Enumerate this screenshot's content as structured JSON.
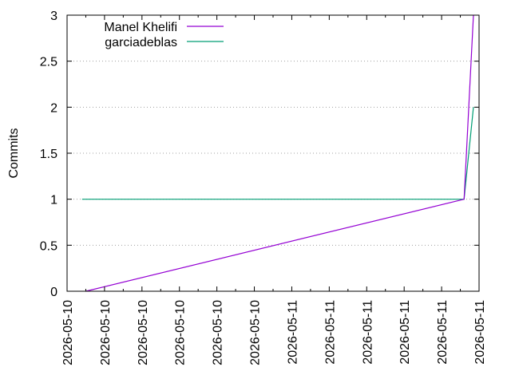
{
  "chart_data": {
    "type": "line",
    "title": "",
    "xlabel": "",
    "ylabel": "Commits",
    "ylim": [
      0,
      3
    ],
    "yticks": [
      0,
      0.5,
      1,
      1.5,
      2,
      2.5,
      3
    ],
    "ytick_labels": [
      "0",
      "0.5",
      "1",
      "1.5",
      "2",
      "2.5",
      "3"
    ],
    "xticks": [
      0,
      1,
      2,
      3,
      4,
      5,
      6,
      7,
      8,
      9,
      10,
      11
    ],
    "xtick_labels": [
      "2026-05-10",
      "2026-05-10",
      "2026-05-10",
      "2026-05-10",
      "2026-05-10",
      "2026-05-10",
      "2026-05-11",
      "2026-05-11",
      "2026-05-11",
      "2026-05-11",
      "2026-05-11",
      "2026-05-11"
    ],
    "xlim": [
      0,
      11
    ],
    "grid": true,
    "legend_position": "top-left",
    "series": [
      {
        "name": "Manel Khelifi",
        "color": "#9400d3",
        "x": [
          0.5,
          10.6,
          10.85
        ],
        "y": [
          0,
          1,
          3
        ]
      },
      {
        "name": "garciadeblas",
        "color": "#009e73",
        "x": [
          0.4,
          10.6,
          10.85
        ],
        "y": [
          1,
          1,
          2
        ]
      }
    ]
  }
}
